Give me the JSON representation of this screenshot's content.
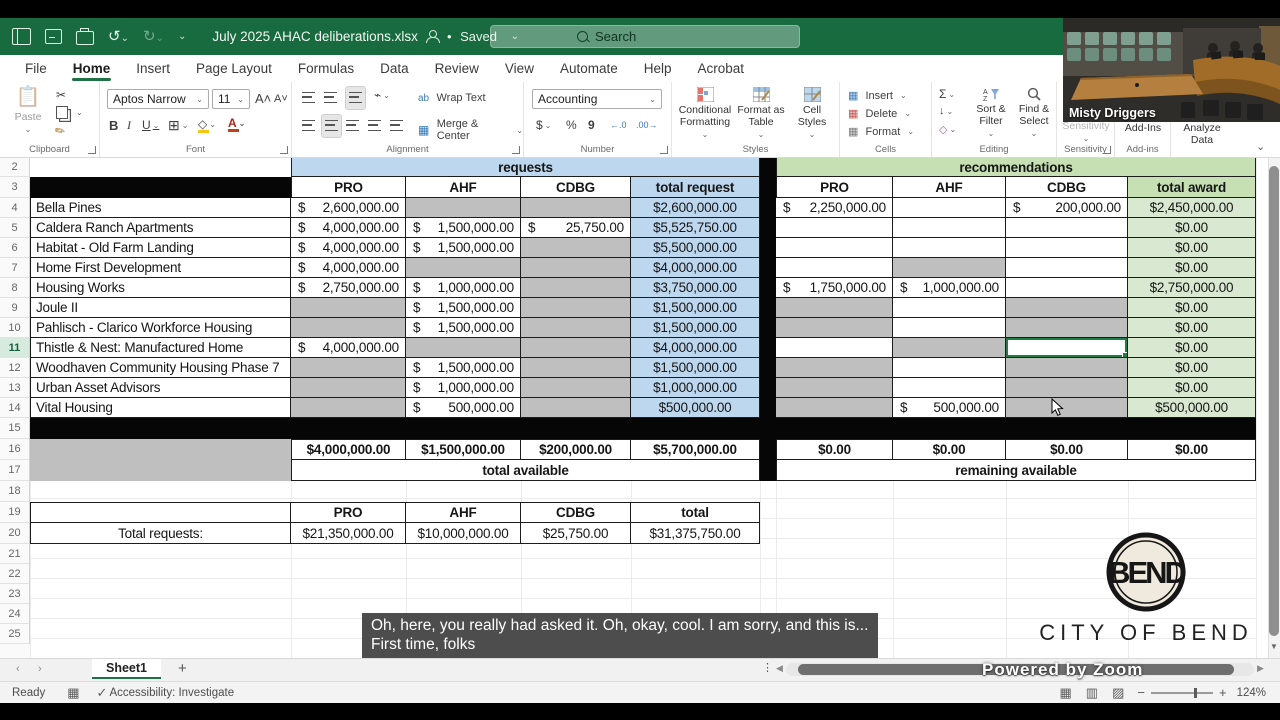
{
  "window": {
    "filename": "July 2025 AHAC deliberations.xlsx",
    "saved_label": "Saved",
    "search_placeholder": "Search"
  },
  "tabs": {
    "items": [
      "File",
      "Home",
      "Insert",
      "Page Layout",
      "Formulas",
      "Data",
      "Review",
      "View",
      "Automate",
      "Help",
      "Acrobat"
    ],
    "active": "Home"
  },
  "ribbon": {
    "font_name": "Aptos Narrow",
    "font_size": "11",
    "number_format": "Accounting",
    "labels": {
      "paste": "Paste",
      "bold": "B",
      "italic": "I",
      "underline": "U",
      "wrap_text": "Wrap Text",
      "merge_center": "Merge & Center",
      "dollar": "$",
      "percent": "%",
      "comma": "9",
      "dec_inc": "←.0",
      "dec_dec": ".00→",
      "conditional_formatting": "Conditional Formatting",
      "format_as_table": "Format as Table",
      "cell_styles": "Cell Styles",
      "insert": "Insert",
      "delete": "Delete",
      "format": "Format",
      "sum": "Σ",
      "sort_filter": "Sort & Filter",
      "find_select": "Find & Select",
      "sensitivity_button": "Sensitivity",
      "add_ins_button": "Add-Ins",
      "analyze_data": "Analyze Data"
    },
    "groups": {
      "clipboard": "Clipboard",
      "font": "Font",
      "alignment": "Alignment",
      "number": "Number",
      "styles": "Styles",
      "cells": "Cells",
      "editing": "Editing",
      "sensitivity": "Sensitivity",
      "add_ins": "Add-ins"
    }
  },
  "sheet": {
    "requests_header": "requests",
    "recommendations_header": "recommendations",
    "request_col_headers": [
      "PRO",
      "AHF",
      "CDBG",
      "total request"
    ],
    "rec_col_headers": [
      "PRO",
      "AHF",
      "CDBG",
      "total award"
    ],
    "projects": [
      {
        "row": 4,
        "name": "Bella Pines",
        "req": [
          {
            "t": "acct",
            "v": "2,600,000.00"
          },
          {
            "t": "gray"
          },
          {
            "t": "gray"
          }
        ],
        "total": "$2,600,000.00",
        "rec": [
          {
            "t": "acct",
            "v": "2,250,000.00"
          },
          {
            "t": "blank"
          },
          {
            "t": "acct",
            "v": "200,000.00"
          }
        ],
        "award": "$2,450,000.00"
      },
      {
        "row": 5,
        "name": "Caldera Ranch Apartments",
        "req": [
          {
            "t": "acct",
            "v": "4,000,000.00"
          },
          {
            "t": "acct",
            "v": "1,500,000.00"
          },
          {
            "t": "acct",
            "v": "25,750.00"
          }
        ],
        "total": "$5,525,750.00",
        "rec": [
          {
            "t": "blank"
          },
          {
            "t": "blank"
          },
          {
            "t": "blank"
          }
        ],
        "award": "$0.00"
      },
      {
        "row": 6,
        "name": "Habitat - Old Farm Landing",
        "req": [
          {
            "t": "acct",
            "v": "4,000,000.00"
          },
          {
            "t": "acct",
            "v": "1,500,000.00"
          },
          {
            "t": "gray"
          }
        ],
        "total": "$5,500,000.00",
        "rec": [
          {
            "t": "blank"
          },
          {
            "t": "blank"
          },
          {
            "t": "blank"
          }
        ],
        "award": "$0.00"
      },
      {
        "row": 7,
        "name": "Home First Development",
        "req": [
          {
            "t": "acct",
            "v": "4,000,000.00"
          },
          {
            "t": "gray"
          },
          {
            "t": "gray"
          }
        ],
        "total": "$4,000,000.00",
        "rec": [
          {
            "t": "blank"
          },
          {
            "t": "gray"
          },
          {
            "t": "blank"
          }
        ],
        "award": "$0.00"
      },
      {
        "row": 8,
        "name": "Housing Works",
        "req": [
          {
            "t": "acct",
            "v": "2,750,000.00"
          },
          {
            "t": "acct",
            "v": "1,000,000.00"
          },
          {
            "t": "gray"
          }
        ],
        "total": "$3,750,000.00",
        "rec": [
          {
            "t": "acct",
            "v": "1,750,000.00"
          },
          {
            "t": "acct",
            "v": "1,000,000.00"
          },
          {
            "t": "blank"
          }
        ],
        "award": "$2,750,000.00"
      },
      {
        "row": 9,
        "name": "Joule II",
        "req": [
          {
            "t": "gray"
          },
          {
            "t": "acct",
            "v": "1,500,000.00"
          },
          {
            "t": "gray"
          }
        ],
        "total": "$1,500,000.00",
        "rec": [
          {
            "t": "gray"
          },
          {
            "t": "blank"
          },
          {
            "t": "gray"
          }
        ],
        "award": "$0.00"
      },
      {
        "row": 10,
        "name": "Pahlisch - Clarico Workforce Housing",
        "req": [
          {
            "t": "gray"
          },
          {
            "t": "acct",
            "v": "1,500,000.00"
          },
          {
            "t": "gray"
          }
        ],
        "total": "$1,500,000.00",
        "rec": [
          {
            "t": "gray"
          },
          {
            "t": "blank"
          },
          {
            "t": "gray"
          }
        ],
        "award": "$0.00"
      },
      {
        "row": 11,
        "name": "Thistle & Nest: Manufactured Home",
        "req": [
          {
            "t": "acct",
            "v": "4,000,000.00"
          },
          {
            "t": "gray"
          },
          {
            "t": "gray"
          }
        ],
        "total": "$4,000,000.00",
        "rec": [
          {
            "t": "blank"
          },
          {
            "t": "gray"
          },
          {
            "t": "sel"
          }
        ],
        "award": "$0.00"
      },
      {
        "row": 12,
        "name": "Woodhaven Community Housing Phase 7",
        "req": [
          {
            "t": "gray"
          },
          {
            "t": "acct",
            "v": "1,500,000.00"
          },
          {
            "t": "gray"
          }
        ],
        "total": "$1,500,000.00",
        "rec": [
          {
            "t": "gray"
          },
          {
            "t": "blank"
          },
          {
            "t": "gray"
          }
        ],
        "award": "$0.00"
      },
      {
        "row": 13,
        "name": "Urban Asset Advisors",
        "req": [
          {
            "t": "gray"
          },
          {
            "t": "acct",
            "v": "1,000,000.00"
          },
          {
            "t": "gray"
          }
        ],
        "total": "$1,000,000.00",
        "rec": [
          {
            "t": "gray"
          },
          {
            "t": "blank"
          },
          {
            "t": "gray"
          }
        ],
        "award": "$0.00"
      },
      {
        "row": 14,
        "name": "Vital Housing",
        "req": [
          {
            "t": "gray"
          },
          {
            "t": "acct",
            "v": "500,000.00"
          },
          {
            "t": "gray"
          }
        ],
        "total": "$500,000.00",
        "rec": [
          {
            "t": "gray"
          },
          {
            "t": "acct",
            "v": "500,000.00"
          },
          {
            "t": "gray"
          }
        ],
        "award": "$500,000.00"
      }
    ],
    "totals_row": {
      "req": [
        "$4,000,000.00",
        "$1,500,000.00",
        "$200,000.00",
        "$5,700,000.00"
      ],
      "rec": [
        "$0.00",
        "$0.00",
        "$0.00",
        "$0.00"
      ]
    },
    "total_available_label": "total available",
    "remaining_available_label": "remaining available",
    "bottom_table": {
      "headers": [
        "PRO",
        "AHF",
        "CDBG",
        "total"
      ],
      "label": "Total requests:",
      "values": [
        "$21,350,000.00",
        "$10,000,000.00",
        "$25,750.00",
        "$31,375,750.00"
      ]
    },
    "visible_row_numbers": [
      2,
      3,
      4,
      5,
      6,
      7,
      8,
      9,
      10,
      11,
      12,
      13,
      14,
      15,
      16,
      17,
      18,
      19,
      20,
      21,
      22,
      23,
      24,
      25
    ],
    "active_row": 11
  },
  "webcam": {
    "participant_name": "Misty Driggers"
  },
  "captions": {
    "line1": "Oh, here, you really had asked it. Oh, okay, cool. I am sorry, and this is...",
    "line2": "First time, folks"
  },
  "watermark": {
    "text": "Powered by Zoom"
  },
  "logo": {
    "emblem_text": "BEND",
    "text": "CITY OF BEND"
  },
  "sheet_tabs": {
    "active_sheet": "Sheet1",
    "add_label": "+"
  },
  "status": {
    "ready": "Ready",
    "accessibility": "Accessibility: Investigate",
    "zoom_level": "124%"
  },
  "icons": {
    "search": "magnifier",
    "undo": "↺",
    "redo": "↻",
    "chevron_down": "⌄",
    "sum": "Σ",
    "borders": "⊞",
    "merge": "▦",
    "fill_down": "↓",
    "eraser": "◇",
    "scroll_left": "◀",
    "scroll_right": "▶",
    "scroll_down": "▼",
    "view_normal": "▦",
    "view_layout": "▥",
    "view_break": "▨"
  }
}
